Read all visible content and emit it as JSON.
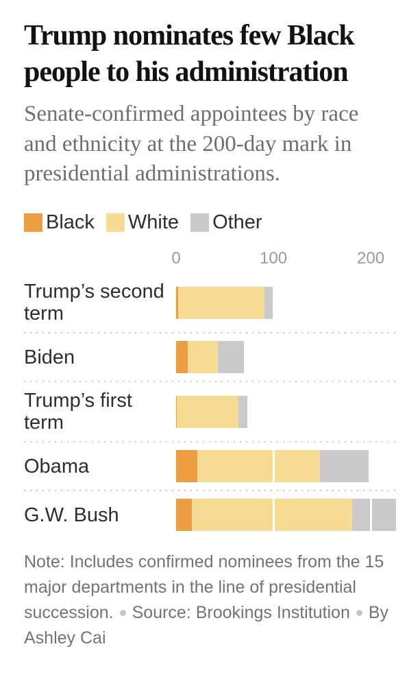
{
  "header": {
    "title_line1": "Trump nominates few Black",
    "title_line2": "people to his administration",
    "subtitle": "Senate-confirmed appointees by race and ethnicity at the 200-day mark in presidential administrations."
  },
  "legend": {
    "items": [
      {
        "label": "Black",
        "color": "#ED9E40"
      },
      {
        "label": "White",
        "color": "#F8DB92"
      },
      {
        "label": "Other",
        "color": "#CACACA"
      }
    ]
  },
  "chart_data": {
    "type": "bar",
    "orientation": "horizontal",
    "stacked": true,
    "title": "Trump nominates few Black people to his administration",
    "subtitle": "Senate-confirmed appointees by race and ethnicity at the 200-day mark in presidential administrations.",
    "categories": [
      "Trump’s second term",
      "Biden",
      "Trump’s first term",
      "Obama",
      "G.W. Bush"
    ],
    "series": [
      {
        "name": "Black",
        "color": "#ED9E40",
        "values": [
          2,
          12,
          1,
          22,
          16
        ]
      },
      {
        "name": "White",
        "color": "#F8DB92",
        "values": [
          89,
          31,
          63,
          126,
          165
        ]
      },
      {
        "name": "Other",
        "color": "#CACACA",
        "values": [
          10,
          27,
          9,
          50,
          45
        ]
      }
    ],
    "totals": [
      101,
      70,
      73,
      198,
      226
    ],
    "xticks": [
      0,
      100,
      200
    ],
    "xlim": [
      0,
      226
    ],
    "xlabel": "",
    "ylabel": "",
    "grid": "white vertical gridlines over bars at ticks",
    "legend_position": "top",
    "row_separator": "dotted"
  },
  "note": {
    "note_text": "Note: Includes confirmed nominees from the 15 major departments in the line of presidential succession.",
    "source_text": "Source: Brookings Institution",
    "byline_text": "By Ashley Cai"
  }
}
